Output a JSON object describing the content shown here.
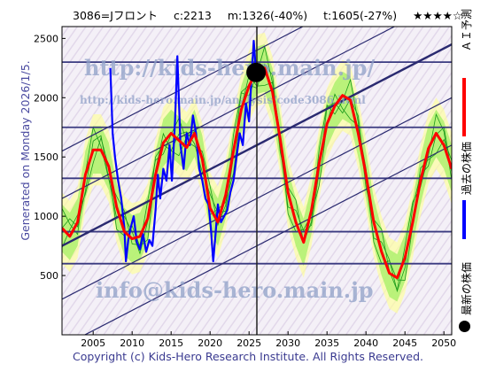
{
  "header": {
    "code_name": "3086=Jフロント",
    "current": "c:2213",
    "mid": "m:1326(-40%)",
    "target": "t:1605(-27%)",
    "rating": "★★★★☆"
  },
  "generated": "Generated on Monday 2026/1/5.",
  "copyright": "Copyright (c) Kids-Hero Research Institute. All Rights Reserved.",
  "watermarks": {
    "url": "http://kids-hero.main.jp/",
    "page": "http://kids-hero.main.jp/analysis/code3086.html",
    "email": "info@kids-hero.main.jp"
  },
  "legend": [
    {
      "label": "ＡＩ予測",
      "color": "#ff0000"
    },
    {
      "label": "過去の株価",
      "color": "#0000ff"
    },
    {
      "label": "最新の株価",
      "color": "#000000"
    }
  ],
  "chart_data": {
    "type": "line",
    "xlim": [
      2001,
      2051
    ],
    "ylim": [
      0,
      2600
    ],
    "x_ticks": [
      2005,
      2010,
      2015,
      2020,
      2025,
      2030,
      2035,
      2040,
      2045,
      2050
    ],
    "y_ticks": [
      500,
      1000,
      1500,
      2000,
      2500
    ],
    "horizontal_levels": [
      600,
      870,
      1320,
      1750,
      2300
    ],
    "series": [
      {
        "name": "過去の株価",
        "color": "#0000ff",
        "points": [
          [
            2007.2,
            2250
          ],
          [
            2007.5,
            1700
          ],
          [
            2007.8,
            1500
          ],
          [
            2008.2,
            1300
          ],
          [
            2008.6,
            1150
          ],
          [
            2009.0,
            900
          ],
          [
            2009.2,
            620
          ],
          [
            2009.5,
            800
          ],
          [
            2009.8,
            900
          ],
          [
            2010.2,
            1000
          ],
          [
            2010.6,
            780
          ],
          [
            2011.0,
            720
          ],
          [
            2011.4,
            850
          ],
          [
            2011.8,
            700
          ],
          [
            2012.2,
            800
          ],
          [
            2012.6,
            750
          ],
          [
            2013.0,
            1050
          ],
          [
            2013.3,
            1350
          ],
          [
            2013.6,
            1150
          ],
          [
            2014.0,
            1400
          ],
          [
            2014.4,
            1300
          ],
          [
            2014.8,
            1600
          ],
          [
            2015.1,
            1300
          ],
          [
            2015.5,
            1800
          ],
          [
            2015.8,
            2350
          ],
          [
            2016.2,
            1600
          ],
          [
            2016.6,
            1400
          ],
          [
            2017.0,
            1700
          ],
          [
            2017.4,
            1600
          ],
          [
            2017.8,
            1850
          ],
          [
            2018.2,
            1700
          ],
          [
            2018.6,
            1400
          ],
          [
            2019.0,
            1300
          ],
          [
            2019.4,
            1150
          ],
          [
            2019.8,
            1100
          ],
          [
            2020.1,
            900
          ],
          [
            2020.4,
            620
          ],
          [
            2020.7,
            850
          ],
          [
            2021.0,
            1100
          ],
          [
            2021.4,
            950
          ],
          [
            2021.8,
            1000
          ],
          [
            2022.2,
            1050
          ],
          [
            2022.6,
            1200
          ],
          [
            2023.0,
            1300
          ],
          [
            2023.4,
            1500
          ],
          [
            2023.8,
            1700
          ],
          [
            2024.2,
            1600
          ],
          [
            2024.6,
            1950
          ],
          [
            2025.0,
            1800
          ],
          [
            2025.3,
            2150
          ],
          [
            2025.6,
            2480
          ],
          [
            2025.9,
            2213
          ]
        ]
      },
      {
        "name": "ＡＩ予測",
        "color": "#ff0000",
        "points": [
          [
            2001.0,
            900
          ],
          [
            2002.0,
            830
          ],
          [
            2003.0,
            950
          ],
          [
            2004.0,
            1350
          ],
          [
            2005.0,
            1560
          ],
          [
            2006.0,
            1560
          ],
          [
            2007.0,
            1420
          ],
          [
            2008.0,
            1080
          ],
          [
            2009.0,
            870
          ],
          [
            2010.0,
            810
          ],
          [
            2011.0,
            830
          ],
          [
            2012.0,
            980
          ],
          [
            2013.0,
            1350
          ],
          [
            2014.0,
            1620
          ],
          [
            2015.0,
            1700
          ],
          [
            2016.0,
            1640
          ],
          [
            2017.0,
            1580
          ],
          [
            2018.0,
            1700
          ],
          [
            2019.0,
            1480
          ],
          [
            2020.0,
            1070
          ],
          [
            2021.0,
            950
          ],
          [
            2022.0,
            1180
          ],
          [
            2023.0,
            1550
          ],
          [
            2024.0,
            1900
          ],
          [
            2025.0,
            2100
          ],
          [
            2026.0,
            2230
          ],
          [
            2027.0,
            2250
          ],
          [
            2028.0,
            2050
          ],
          [
            2029.0,
            1650
          ],
          [
            2030.0,
            1200
          ],
          [
            2031.0,
            950
          ],
          [
            2032.0,
            780
          ],
          [
            2033.0,
            1050
          ],
          [
            2034.0,
            1450
          ],
          [
            2035.0,
            1780
          ],
          [
            2036.0,
            1930
          ],
          [
            2037.0,
            2020
          ],
          [
            2038.0,
            1980
          ],
          [
            2039.0,
            1700
          ],
          [
            2040.0,
            1350
          ],
          [
            2041.0,
            950
          ],
          [
            2042.0,
            700
          ],
          [
            2043.0,
            520
          ],
          [
            2044.0,
            480
          ],
          [
            2045.0,
            650
          ],
          [
            2046.0,
            950
          ],
          [
            2047.0,
            1300
          ],
          [
            2048.0,
            1570
          ],
          [
            2049.0,
            1700
          ],
          [
            2050.0,
            1600
          ],
          [
            2051.0,
            1400
          ]
        ]
      }
    ],
    "latest_price": {
      "x": 2025.9,
      "y": 2213
    },
    "current_year_marker": 2026
  }
}
